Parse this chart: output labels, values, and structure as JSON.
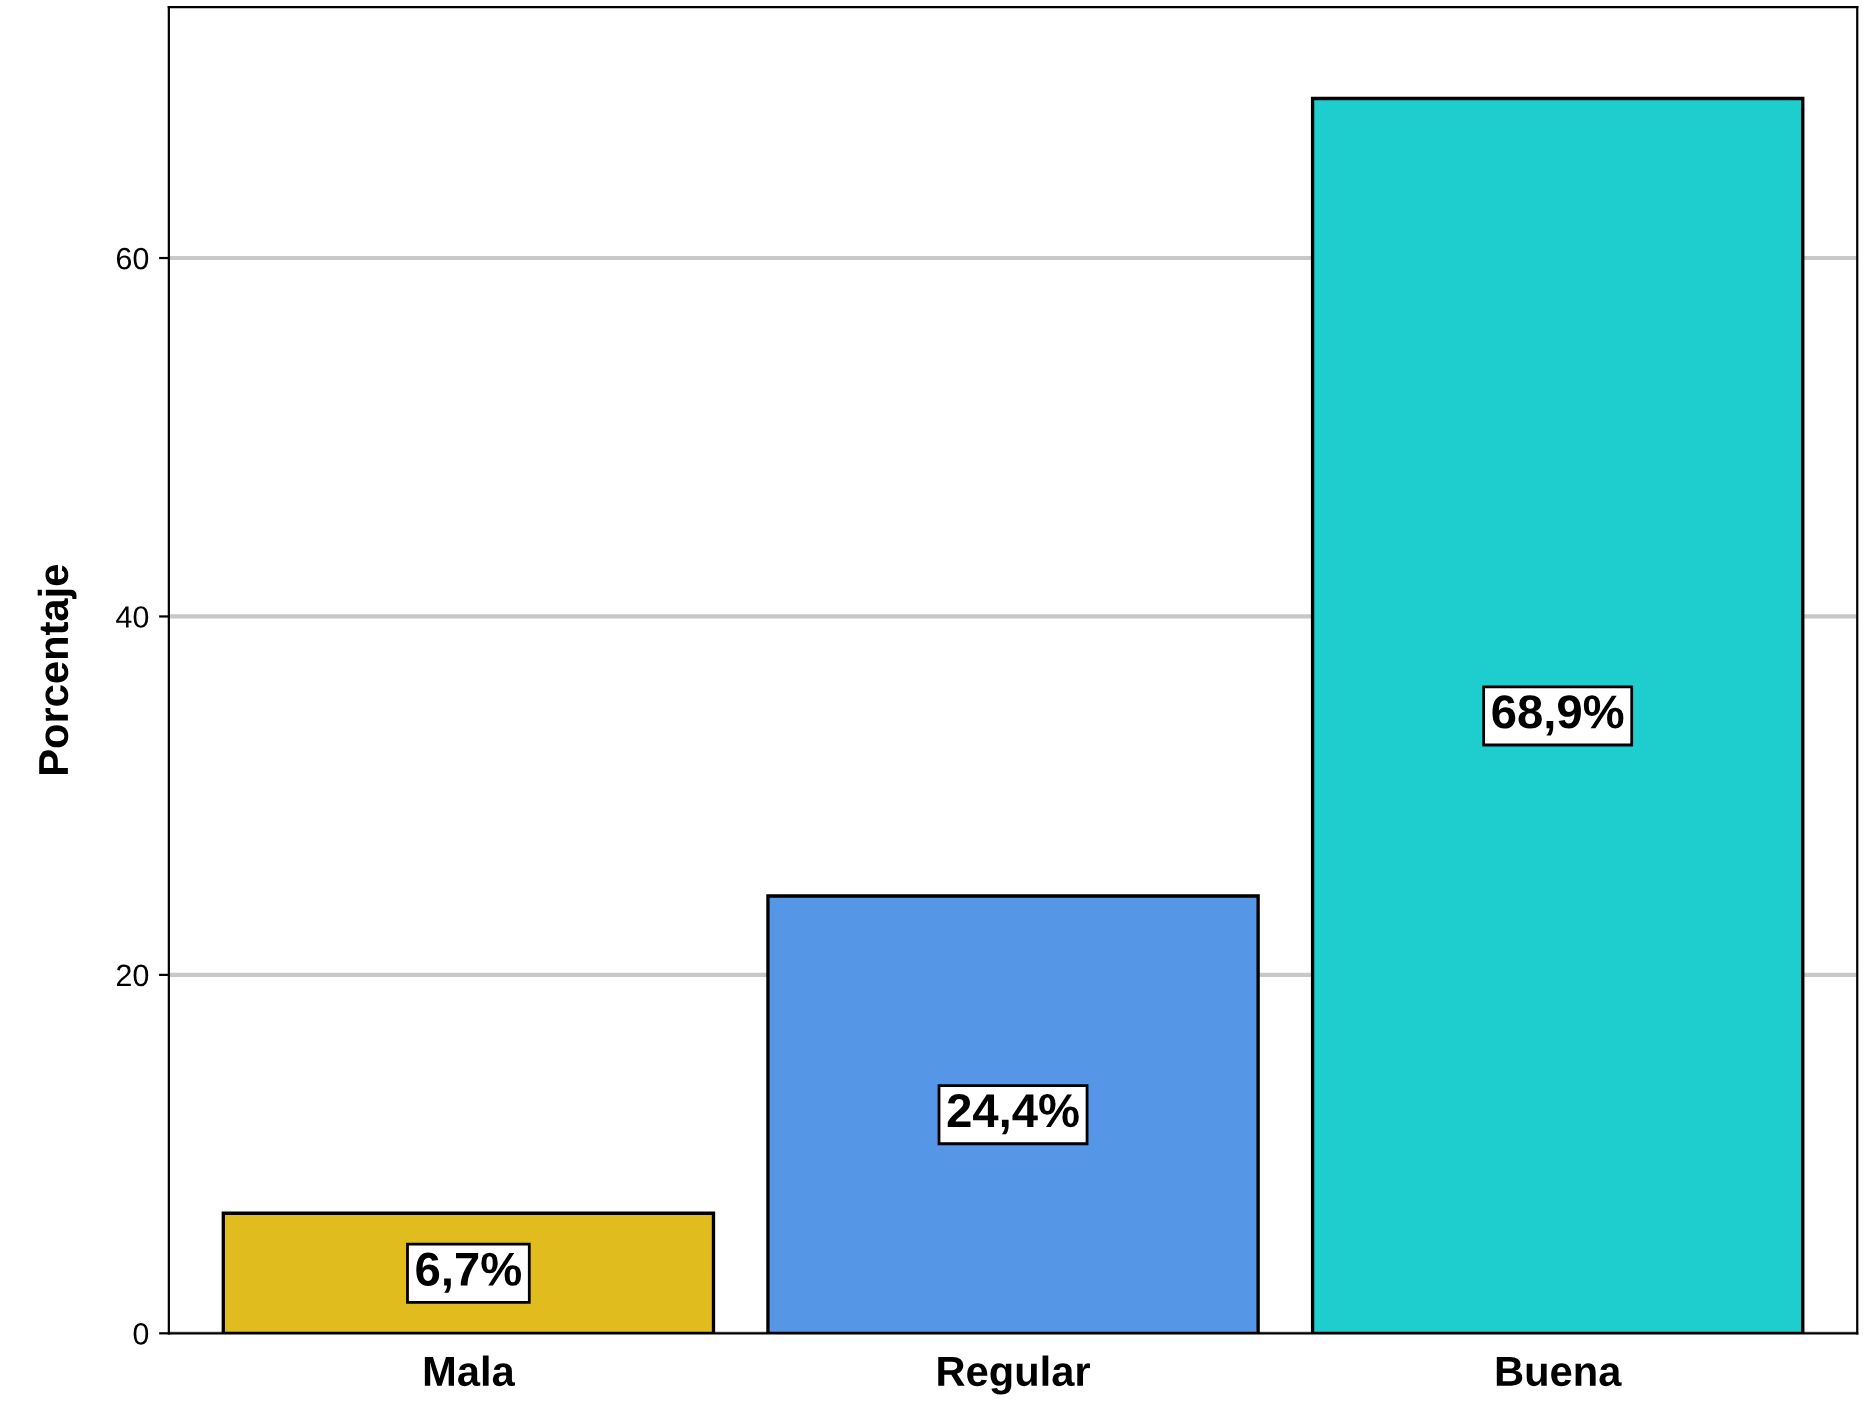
{
  "chart_data": {
    "type": "bar",
    "ylabel": "Porcentaje",
    "categories": [
      "Mala",
      "Regular",
      "Buena"
    ],
    "values": [
      6.7,
      24.4,
      68.9
    ],
    "colors": [
      "#e0bc1f",
      "#5596e6",
      "#1ecece"
    ],
    "value_labels": [
      "6,7%",
      "24,4%",
      "68,9%"
    ],
    "ylim": [
      0,
      74
    ],
    "yticks": [
      0,
      20,
      40,
      60
    ],
    "grid": "y"
  }
}
